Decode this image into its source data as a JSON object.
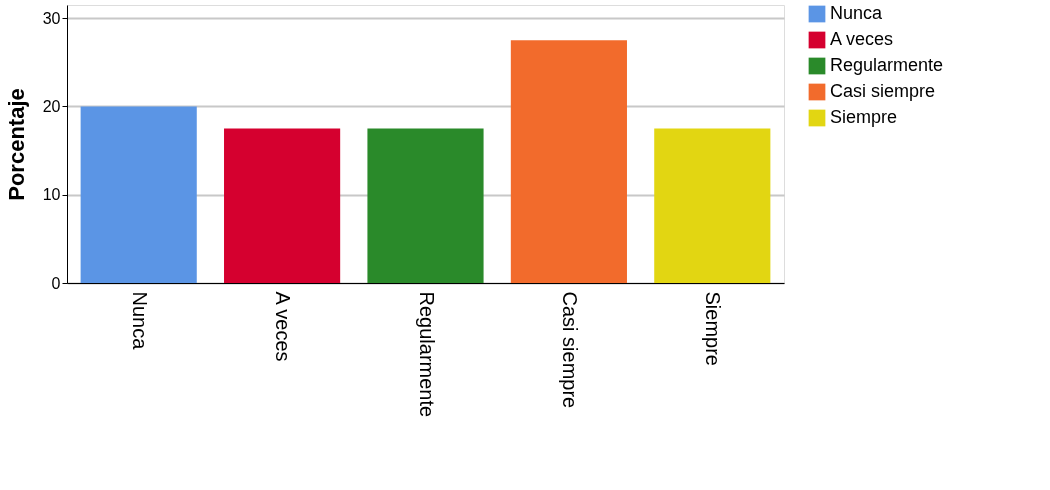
{
  "chart_data": {
    "type": "bar",
    "ylabel": "Porcentaje",
    "categories": [
      "Nunca",
      "A veces",
      "Regularmente",
      "Casi siempre",
      "Siempre"
    ],
    "series": [
      {
        "name": "Nunca",
        "color": "#5b95e5",
        "values": [
          20,
          null,
          null,
          null,
          null
        ]
      },
      {
        "name": "A veces",
        "color": "#d5002f",
        "values": [
          null,
          17.5,
          null,
          null,
          null
        ]
      },
      {
        "name": "Regularmente",
        "color": "#2a8a2a",
        "values": [
          null,
          null,
          17.5,
          null,
          null
        ]
      },
      {
        "name": "Casi siempre",
        "color": "#f26b2c",
        "values": [
          null,
          null,
          null,
          27.5,
          null
        ]
      },
      {
        "name": "Siempre",
        "color": "#e2d612",
        "values": [
          null,
          null,
          null,
          null,
          17.5
        ]
      }
    ],
    "ylim": [
      0,
      31.5
    ],
    "yticks": [
      0,
      10,
      20,
      30
    ],
    "grid": "y",
    "legend": "top right"
  }
}
